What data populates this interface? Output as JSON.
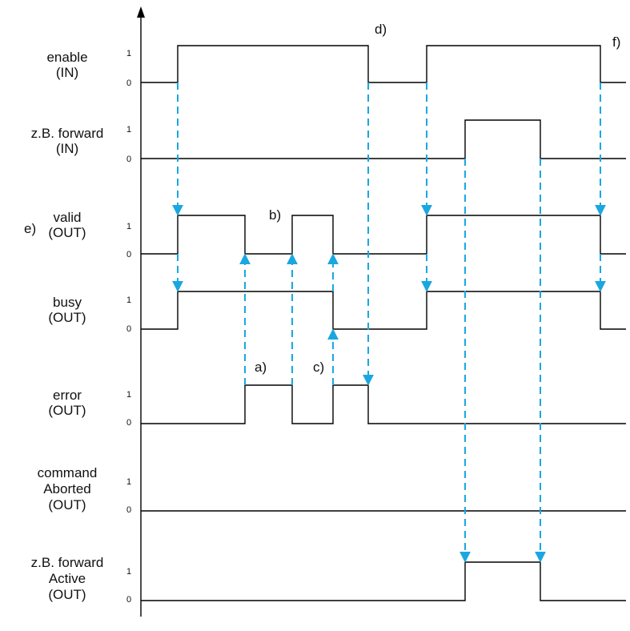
{
  "colors": {
    "signal": "#000000",
    "dependency_arrow": "#1aa7e0"
  },
  "signals": [
    {
      "id": "enable",
      "lines": [
        "enable",
        "(IN)"
      ],
      "level_high": "1",
      "level_low": "0",
      "transitions": [
        {
          "t": 222,
          "v": 1
        },
        {
          "t": 460,
          "v": 0
        },
        {
          "t": 533,
          "v": 1
        },
        {
          "t": 750,
          "v": 0
        }
      ]
    },
    {
      "id": "forward",
      "lines": [
        "z.B. forward",
        "(IN)"
      ],
      "level_high": "1",
      "level_low": "0",
      "transitions": [
        {
          "t": 581,
          "v": 1
        },
        {
          "t": 675,
          "v": 0
        }
      ]
    },
    {
      "id": "valid",
      "lines": [
        "valid",
        "(OUT)"
      ],
      "level_high": "1",
      "level_low": "0",
      "transitions": [
        {
          "t": 222,
          "v": 1
        },
        {
          "t": 306,
          "v": 0
        },
        {
          "t": 365,
          "v": 1
        },
        {
          "t": 416,
          "v": 0
        },
        {
          "t": 533,
          "v": 1
        },
        {
          "t": 750,
          "v": 0
        }
      ]
    },
    {
      "id": "busy",
      "lines": [
        "busy",
        "(OUT)"
      ],
      "level_high": "1",
      "level_low": "0",
      "transitions": [
        {
          "t": 222,
          "v": 1
        },
        {
          "t": 416,
          "v": 0
        },
        {
          "t": 533,
          "v": 1
        },
        {
          "t": 750,
          "v": 0
        }
      ]
    },
    {
      "id": "error",
      "lines": [
        "error",
        "(OUT)"
      ],
      "level_high": "1",
      "level_low": "0",
      "transitions": [
        {
          "t": 306,
          "v": 1
        },
        {
          "t": 365,
          "v": 0
        },
        {
          "t": 416,
          "v": 1
        },
        {
          "t": 460,
          "v": 0
        }
      ]
    },
    {
      "id": "commandAborted",
      "lines": [
        "command",
        "Aborted",
        "(OUT)"
      ],
      "level_high": "1",
      "level_low": "0",
      "transitions": []
    },
    {
      "id": "forwardActive",
      "lines": [
        "z.B. forward",
        "Active",
        "(OUT)"
      ],
      "level_high": "1",
      "level_low": "0",
      "transitions": [
        {
          "t": 581,
          "v": 1
        },
        {
          "t": 675,
          "v": 0
        }
      ]
    }
  ],
  "annotations": [
    "a)",
    "b)",
    "c)",
    "d)",
    "e)",
    "f)"
  ],
  "dependencies": [
    {
      "t": 222,
      "from": "enable",
      "to": "valid",
      "dir": "down"
    },
    {
      "t": 222,
      "from": "valid",
      "to": "busy",
      "dir": "down"
    },
    {
      "t": 306,
      "from": "error",
      "to": "valid",
      "dir": "up"
    },
    {
      "t": 365,
      "from": "error",
      "to": "valid",
      "dir": "up"
    },
    {
      "t": 416,
      "from": "busy",
      "to": "valid",
      "dir": "up"
    },
    {
      "t": 416,
      "from": "error",
      "to": "busy",
      "dir": "up"
    },
    {
      "t": 460,
      "from": "enable",
      "to": "error",
      "dir": "down"
    },
    {
      "t": 533,
      "from": "enable",
      "to": "valid",
      "dir": "down"
    },
    {
      "t": 533,
      "from": "valid",
      "to": "busy",
      "dir": "down"
    },
    {
      "t": 581,
      "from": "forward",
      "to": "forwardActive",
      "dir": "down"
    },
    {
      "t": 675,
      "from": "forward",
      "to": "forwardActive",
      "dir": "down"
    },
    {
      "t": 750,
      "from": "enable",
      "to": "valid",
      "dir": "down"
    },
    {
      "t": 750,
      "from": "valid",
      "to": "busy",
      "dir": "down"
    }
  ]
}
